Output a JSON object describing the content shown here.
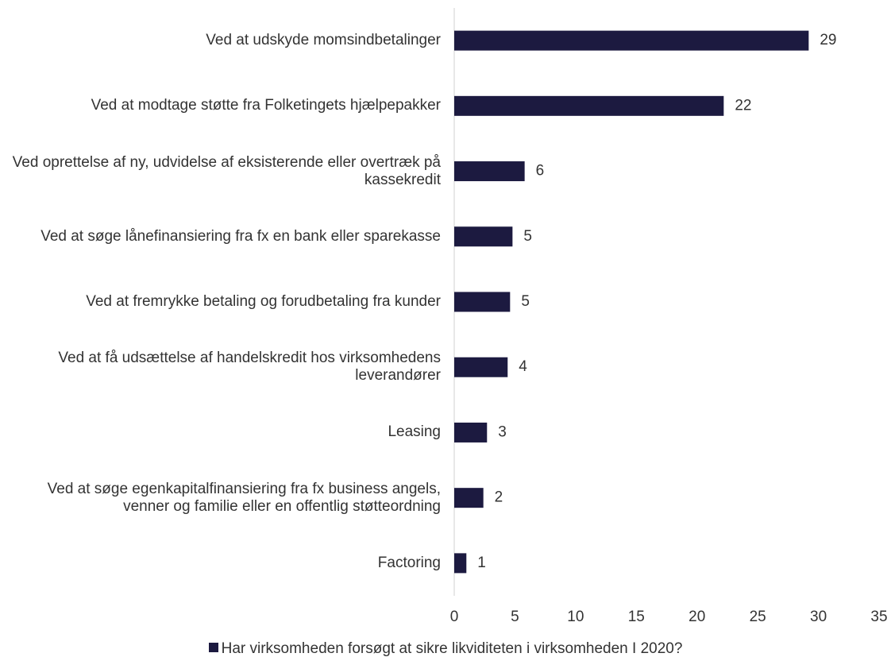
{
  "chart_data": {
    "type": "barh",
    "categories": [
      "Ved at udskyde momsindbetalinger",
      "Ved at modtage støtte fra Folketingets hjælpepakker",
      "Ved oprettelse af ny, udvidelse af eksisterende eller overtræk på kassekredit",
      "Ved at søge lånefinansiering fra fx en bank eller sparekasse",
      "Ved at fremrykke betaling og forudbetaling fra kunder",
      "Ved at få udsættelse af handelskredit hos virksomhedens leverandører",
      "Leasing",
      "Ved at søge egenkapitalfinansiering fra fx business angels, venner og familie eller en offentlig støtteordning",
      "Factoring"
    ],
    "series": [
      {
        "name": "Har virksomheden forsøgt at sikre likviditeten i virksomheden I 2020?",
        "color": "#1c1a40",
        "values": [
          29.2,
          22.2,
          5.8,
          4.8,
          4.6,
          4.4,
          2.7,
          2.4,
          1.0
        ],
        "value_labels": [
          "29",
          "22",
          "6",
          "5",
          "5",
          "4",
          "3",
          "2",
          "1"
        ]
      }
    ],
    "xlim": [
      0,
      35
    ],
    "xticks": [
      0,
      5,
      10,
      15,
      20,
      25,
      30,
      35
    ],
    "legend": "bottom"
  }
}
